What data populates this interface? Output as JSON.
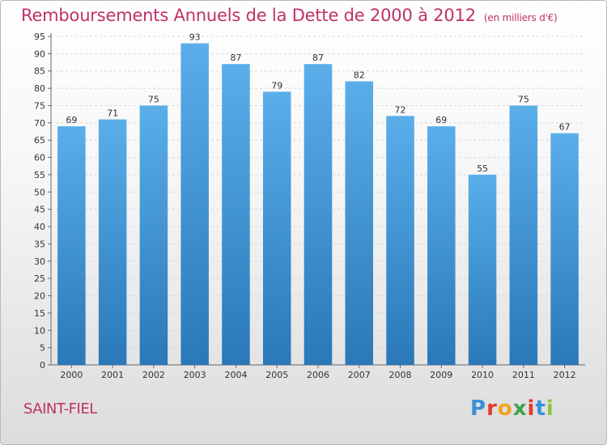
{
  "title": {
    "main": "Remboursements Annuels de la Dette de 2000 à 2012",
    "unit": "(en milliers d'€)"
  },
  "city": "SAINT-FIEL",
  "logo": {
    "letters": [
      "P",
      "r",
      "o",
      "x",
      "i",
      "t",
      "i"
    ],
    "colors": [
      "#3a8fd8",
      "#e23c2c",
      "#f2a31b",
      "#3fa34d",
      "#e23c2c",
      "#3a8fd8",
      "#8cc63f"
    ]
  },
  "chart_data": {
    "type": "bar",
    "categories": [
      "2000",
      "2001",
      "2002",
      "2003",
      "2004",
      "2005",
      "2006",
      "2007",
      "2008",
      "2009",
      "2010",
      "2011",
      "2012"
    ],
    "values": [
      69,
      71,
      75,
      93,
      87,
      79,
      87,
      82,
      72,
      69,
      55,
      75,
      67
    ],
    "ylim": [
      0,
      95
    ],
    "ytick_step": 5,
    "bar_color_top": "#5aaeea",
    "bar_color_bottom": "#2a78b8",
    "grid": true,
    "xlabel": "",
    "ylabel": ""
  }
}
